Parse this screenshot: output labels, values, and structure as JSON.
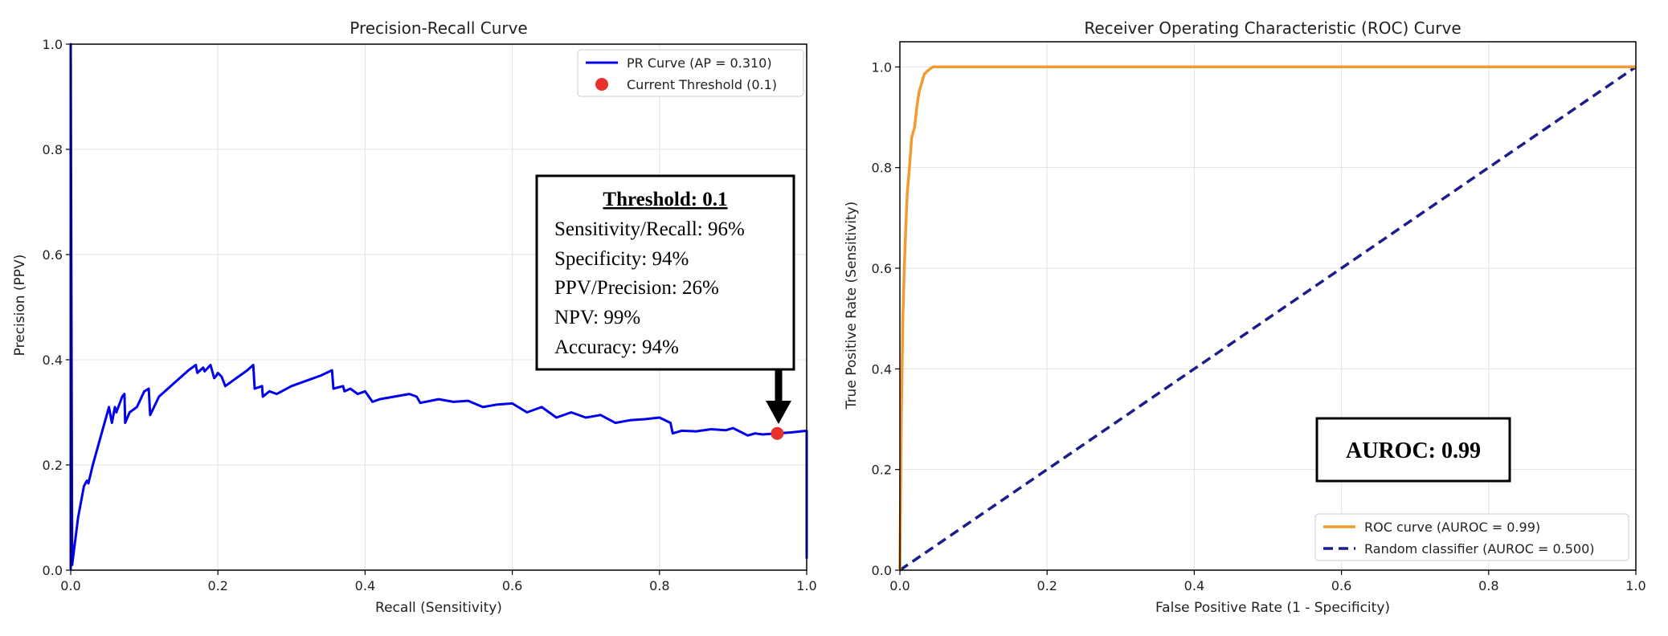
{
  "chart_data": [
    {
      "type": "line",
      "title": "Precision-Recall Curve",
      "xlabel": "Recall (Sensitivity)",
      "ylabel": "Precision (PPV)",
      "xlim": [
        0,
        1
      ],
      "ylim": [
        0,
        1
      ],
      "xticks": [
        "0.0",
        "0.2",
        "0.4",
        "0.6",
        "0.8",
        "1.0"
      ],
      "yticks": [
        "0.0",
        "0.2",
        "0.4",
        "0.6",
        "0.8",
        "1.0"
      ],
      "grid": true,
      "legend_position": "top-right",
      "series": [
        {
          "name": "PR Curve (AP = 0.310)",
          "color": "#0000ee",
          "style": "solid",
          "x": [
            0,
            0,
            0.002,
            0.01,
            0.018,
            0.022,
            0.024,
            0.03,
            0.04,
            0.05,
            0.052,
            0.056,
            0.06,
            0.062,
            0.07,
            0.073,
            0.074,
            0.08,
            0.09,
            0.1,
            0.106,
            0.108,
            0.12,
            0.14,
            0.16,
            0.17,
            0.172,
            0.18,
            0.182,
            0.19,
            0.195,
            0.198,
            0.2,
            0.205,
            0.21,
            0.22,
            0.24,
            0.248,
            0.25,
            0.26,
            0.261,
            0.27,
            0.28,
            0.3,
            0.32,
            0.34,
            0.355,
            0.357,
            0.37,
            0.372,
            0.38,
            0.39,
            0.4,
            0.41,
            0.42,
            0.44,
            0.46,
            0.47,
            0.475,
            0.5,
            0.52,
            0.54,
            0.56,
            0.58,
            0.6,
            0.62,
            0.64,
            0.66,
            0.68,
            0.7,
            0.72,
            0.74,
            0.76,
            0.78,
            0.8,
            0.815,
            0.818,
            0.83,
            0.85,
            0.87,
            0.89,
            0.9,
            0.92,
            0.93,
            0.94,
            0.96,
            0.98,
            1.0,
            1.0
          ],
          "y": [
            0,
            1.0,
            0.01,
            0.1,
            0.16,
            0.17,
            0.165,
            0.2,
            0.25,
            0.3,
            0.31,
            0.28,
            0.31,
            0.3,
            0.33,
            0.335,
            0.28,
            0.3,
            0.31,
            0.34,
            0.345,
            0.295,
            0.33,
            0.355,
            0.38,
            0.39,
            0.375,
            0.385,
            0.378,
            0.39,
            0.365,
            0.37,
            0.375,
            0.368,
            0.35,
            0.36,
            0.38,
            0.39,
            0.345,
            0.35,
            0.33,
            0.34,
            0.335,
            0.35,
            0.36,
            0.37,
            0.38,
            0.345,
            0.35,
            0.34,
            0.345,
            0.335,
            0.34,
            0.32,
            0.325,
            0.33,
            0.335,
            0.33,
            0.318,
            0.325,
            0.32,
            0.322,
            0.31,
            0.315,
            0.317,
            0.3,
            0.31,
            0.29,
            0.3,
            0.29,
            0.295,
            0.28,
            0.285,
            0.287,
            0.29,
            0.28,
            0.26,
            0.265,
            0.264,
            0.268,
            0.266,
            0.27,
            0.256,
            0.26,
            0.258,
            0.26,
            0.262,
            0.265,
            0.022
          ]
        }
      ],
      "marker": {
        "name": "Current Threshold (0.1)",
        "color": "#e8322c",
        "x": 0.96,
        "y": 0.26
      },
      "annotation": {
        "title": "Threshold: 0.1",
        "lines": [
          "Sensitivity/Recall: 96%",
          "Specificity: 94%",
          "PPV/Precision: 26%",
          "NPV: 99%",
          "Accuracy: 94%"
        ]
      }
    },
    {
      "type": "line",
      "title": "Receiver Operating Characteristic (ROC) Curve",
      "xlabel": "False Positive Rate (1 - Specificity)",
      "ylabel": "True Positive Rate (Sensitivity)",
      "xlim": [
        0,
        1
      ],
      "ylim": [
        0,
        1.05
      ],
      "xticks": [
        "0.0",
        "0.2",
        "0.4",
        "0.6",
        "0.8",
        "1.0"
      ],
      "yticks": [
        "0.0",
        "0.2",
        "0.4",
        "0.6",
        "0.8",
        "1.0"
      ],
      "grid": true,
      "legend_position": "lower-right",
      "series": [
        {
          "name": "ROC curve (AUROC = 0.99)",
          "color": "#f39a33",
          "style": "solid",
          "x": [
            0,
            0.002,
            0.004,
            0.006,
            0.008,
            0.01,
            0.013,
            0.016,
            0.02,
            0.023,
            0.026,
            0.03,
            0.033,
            0.036,
            0.04,
            0.045,
            0.05,
            0.07,
            0.1,
            0.3,
            0.6,
            0.8,
            1.0
          ],
          "y": [
            0,
            0.3,
            0.5,
            0.6,
            0.68,
            0.75,
            0.8,
            0.86,
            0.88,
            0.92,
            0.95,
            0.97,
            0.985,
            0.99,
            0.995,
            1.0,
            1.0,
            1.0,
            1.0,
            1.0,
            1.0,
            1.0,
            1.0
          ]
        },
        {
          "name": "Random classifier (AUROC = 0.500)",
          "color": "#1c1c8c",
          "style": "dashed",
          "x": [
            0,
            1
          ],
          "y": [
            0,
            1
          ]
        }
      ],
      "annotation": {
        "text": "AUROC: 0.99"
      }
    }
  ]
}
